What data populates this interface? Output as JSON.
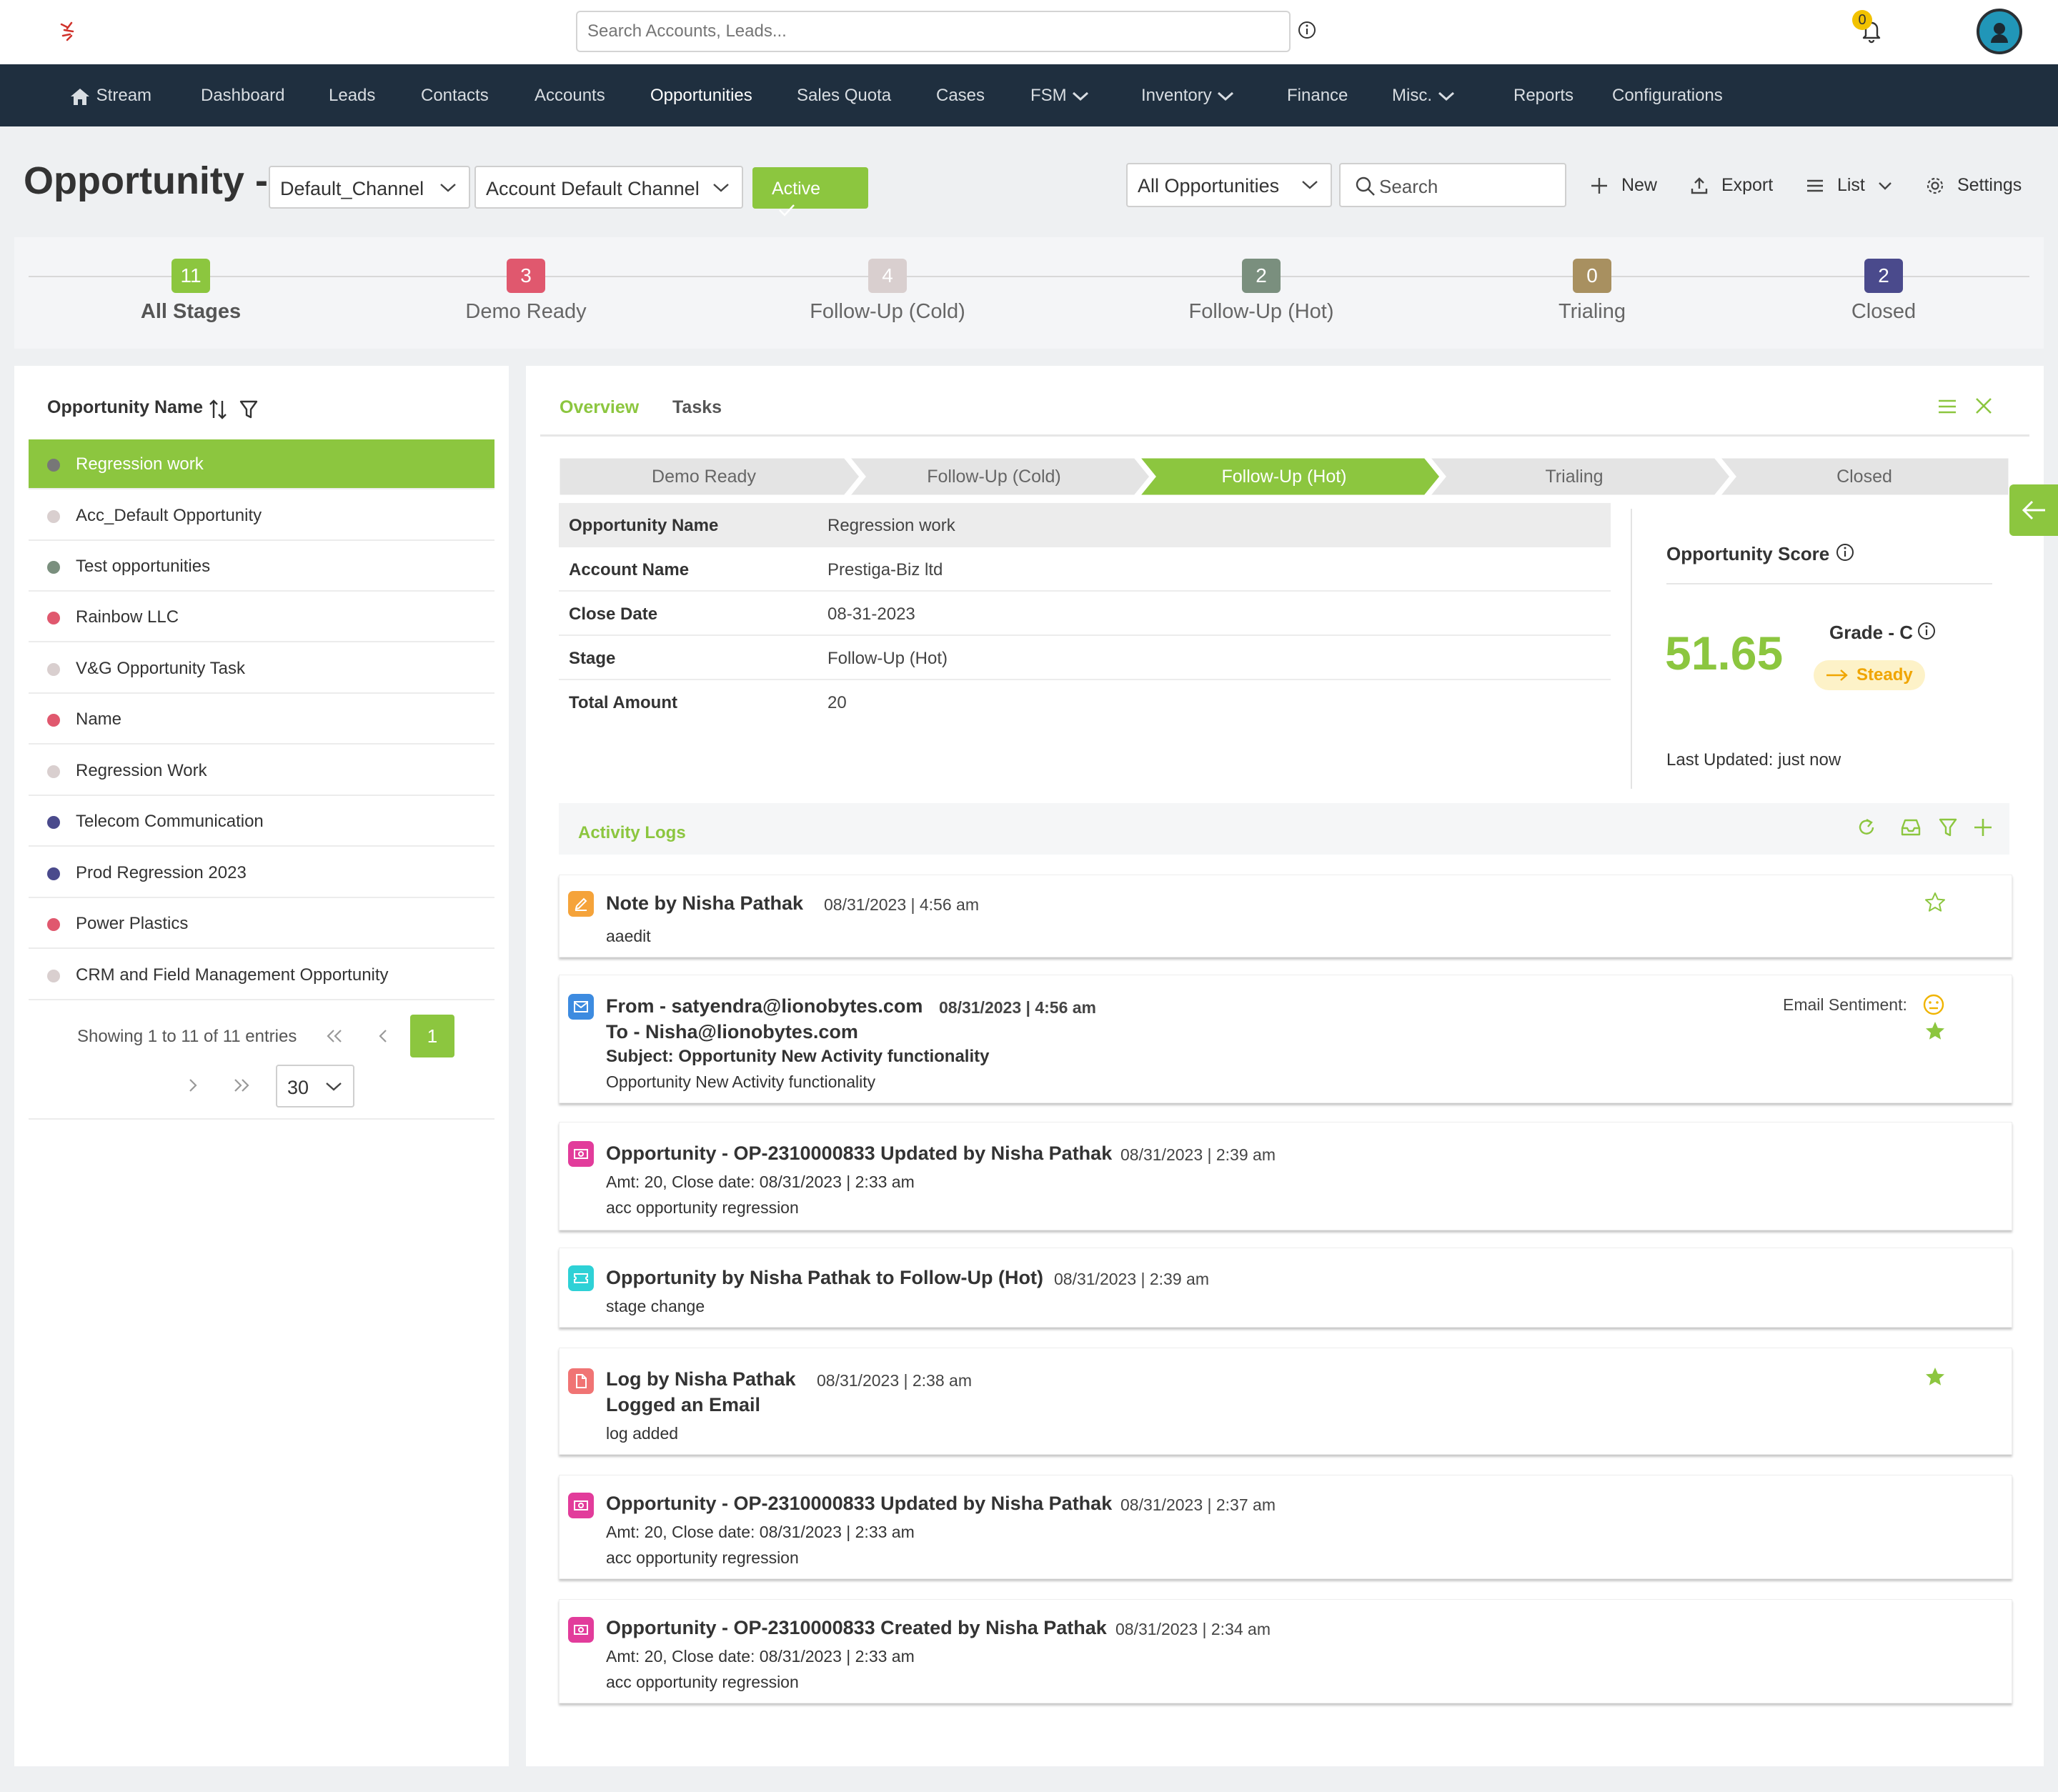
{
  "topbar": {
    "search_placeholder": "Search Accounts, Leads...",
    "notification_count": "0"
  },
  "nav": {
    "items": [
      {
        "label": "Stream"
      },
      {
        "label": "Dashboard"
      },
      {
        "label": "Leads"
      },
      {
        "label": "Contacts"
      },
      {
        "label": "Accounts"
      },
      {
        "label": "Opportunities",
        "active": true
      },
      {
        "label": "Sales Quota"
      },
      {
        "label": "Cases"
      },
      {
        "label": "FSM"
      },
      {
        "label": "Inventory"
      },
      {
        "label": "Finance"
      },
      {
        "label": "Misc."
      },
      {
        "label": "Reports"
      },
      {
        "label": "Configurations"
      }
    ]
  },
  "header": {
    "title": "Opportunity -",
    "channel_select": "Default_Channel",
    "account_channel_select": "Account Default Channel",
    "active_button": "Active",
    "view_select": "All Opportunities",
    "search_placeholder": "Search",
    "new_label": "New",
    "export_label": "Export",
    "list_label": "List",
    "settings_label": "Settings"
  },
  "stages": [
    {
      "count": "11",
      "label": "All Stages",
      "color": "#8cc63f",
      "selected": true
    },
    {
      "count": "3",
      "label": "Demo Ready",
      "color": "#e0586e"
    },
    {
      "count": "4",
      "label": "Follow-Up (Cold)",
      "color": "#d9cfcf"
    },
    {
      "count": "2",
      "label": "Follow-Up (Hot)",
      "color": "#7a8f7e"
    },
    {
      "count": "0",
      "label": "Trialing",
      "color": "#a89060"
    },
    {
      "count": "2",
      "label": "Closed",
      "color": "#4a4a8c"
    }
  ],
  "list": {
    "column_header": "Opportunity Name",
    "rows": [
      {
        "name": "Regression work",
        "dot": "#777777",
        "selected": true
      },
      {
        "name": "Acc_Default Opportunity",
        "dot": "#d9cfcf"
      },
      {
        "name": "Test opportunities",
        "dot": "#7a8f7e"
      },
      {
        "name": "Rainbow LLC",
        "dot": "#e0586e"
      },
      {
        "name": "V&G Opportunity Task",
        "dot": "#d9cfcf"
      },
      {
        "name": "Name",
        "dot": "#e0586e"
      },
      {
        "name": "Regression Work",
        "dot": "#d9cfcf"
      },
      {
        "name": "Telecom Communication",
        "dot": "#4a4a8c"
      },
      {
        "name": "Prod Regression 2023",
        "dot": "#4a4a8c"
      },
      {
        "name": "Power Plastics",
        "dot": "#e0586e"
      },
      {
        "name": "CRM and Field Management Opportunity",
        "dot": "#d9cfcf"
      }
    ],
    "showing": "Showing 1 to 11 of 11 entries",
    "current_page": "1",
    "per_page": "30"
  },
  "detail": {
    "tabs": [
      "Overview",
      "Tasks"
    ],
    "pipeline": [
      {
        "label": "Demo Ready"
      },
      {
        "label": "Follow-Up (Cold)"
      },
      {
        "label": "Follow-Up (Hot)",
        "active": true
      },
      {
        "label": "Trialing"
      },
      {
        "label": "Closed"
      }
    ],
    "fields": [
      {
        "label": "Opportunity Name",
        "value": "Regression work"
      },
      {
        "label": "Account Name",
        "value": "Prestiga-Biz ltd"
      },
      {
        "label": "Close Date",
        "value": "08-31-2023"
      },
      {
        "label": "Stage",
        "value": "Follow-Up (Hot)"
      },
      {
        "label": "Total Amount",
        "value": "20"
      }
    ],
    "score": {
      "title": "Opportunity Score",
      "value": "51.65",
      "grade": "Grade - C",
      "trend": "Steady",
      "last_updated": "Last Updated: just now"
    }
  },
  "activity": {
    "title": "Activity Logs",
    "logs": [
      {
        "icon": "note-icon",
        "color": "#f5a33a",
        "title": "Note by Nisha Pathak",
        "date": "08/31/2023 | 4:56 am",
        "lines": [
          "aaedit"
        ],
        "star": "outline"
      },
      {
        "icon": "email-icon",
        "color": "#3d8be0",
        "title": "From - satyendra@lionobytes.com",
        "date": "08/31/2023 | 4:56 am",
        "to": "To - Nisha@lionobytes.com",
        "subject": "Subject: Opportunity New Activity functionality",
        "lines": [
          "Opportunity New Activity functionality"
        ],
        "sentiment_label": "Email Sentiment:",
        "star": "filled"
      },
      {
        "icon": "money-icon",
        "color": "#e23c9b",
        "title": "Opportunity - OP-2310000833 Updated by Nisha Pathak",
        "date": "08/31/2023 | 2:39 am",
        "lines": [
          "Amt: 20, Close date: 08/31/2023 | 2:33 am",
          "acc opportunity regression"
        ]
      },
      {
        "icon": "ticket-icon",
        "color": "#2ed1d6",
        "title": "Opportunity by Nisha Pathak to Follow-Up (Hot)",
        "date": "08/31/2023 | 2:39 am",
        "lines": [
          "stage change"
        ]
      },
      {
        "icon": "document-icon",
        "color": "#f07474",
        "title": "Log by Nisha Pathak",
        "date": "08/31/2023 | 2:38 am",
        "subtitle": "Logged an Email",
        "lines": [
          "log added"
        ],
        "star": "filled"
      },
      {
        "icon": "money-icon",
        "color": "#e23c9b",
        "title": "Opportunity - OP-2310000833 Updated by Nisha Pathak",
        "date": "08/31/2023 | 2:37 am",
        "lines": [
          "Amt: 20, Close date: 08/31/2023 | 2:33 am",
          "acc opportunity regression"
        ]
      },
      {
        "icon": "money-icon",
        "color": "#e23c9b",
        "title": "Opportunity - OP-2310000833 Created by Nisha Pathak",
        "date": "08/31/2023 | 2:34 am",
        "lines": [
          "Amt: 20, Close date: 08/31/2023 | 2:33 am",
          "acc opportunity regression"
        ]
      }
    ]
  },
  "colors": {
    "accent": "#8cc63f",
    "nav_bg": "#1f2f3f",
    "score_trend_bg": "#fdf2c8",
    "score_trend_text": "#f0a500"
  }
}
